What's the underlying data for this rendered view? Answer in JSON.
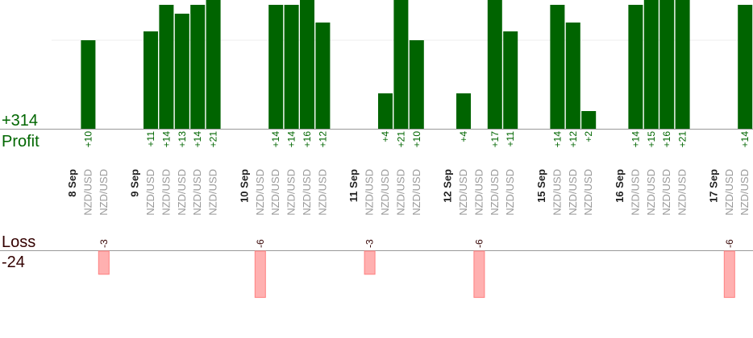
{
  "summary": {
    "profit_total": {
      "value": 314,
      "label": "+314"
    },
    "profit_label": "Profit",
    "loss_label": "Loss",
    "loss_total": -24
  },
  "days": [
    {
      "date": "8 Sep",
      "trades": [
        {
          "symbol": "NZD/USD",
          "result": 10,
          "label": "+10"
        },
        {
          "symbol": "NZD/USD",
          "result": -3
        }
      ]
    },
    {
      "date": "9 Sep",
      "trades": [
        {
          "symbol": "NZD/USD",
          "result": 11,
          "label": "+11"
        },
        {
          "symbol": "NZD/USD",
          "result": 14,
          "label": "+14"
        },
        {
          "symbol": "NZD/USD",
          "result": 13,
          "label": "+13"
        },
        {
          "symbol": "NZD/USD",
          "result": 14,
          "label": "+14"
        },
        {
          "symbol": "NZD/USD",
          "result": 21,
          "label": "+21"
        }
      ]
    },
    {
      "date": "10 Sep",
      "trades": [
        {
          "symbol": "NZD/USD",
          "result": -6
        },
        {
          "symbol": "NZD/USD",
          "result": 14,
          "label": "+14"
        },
        {
          "symbol": "NZD/USD",
          "result": 14,
          "label": "+14"
        },
        {
          "symbol": "NZD/USD",
          "result": 16,
          "label": "+16"
        },
        {
          "symbol": "NZD/USD",
          "result": 12,
          "label": "+12"
        }
      ]
    },
    {
      "date": "11 Sep",
      "trades": [
        {
          "symbol": "NZD/USD",
          "result": -3
        },
        {
          "symbol": "NZD/USD",
          "result": 4,
          "label": "+4"
        },
        {
          "symbol": "NZD/USD",
          "result": 21,
          "label": "+21"
        },
        {
          "symbol": "NZD/USD",
          "result": 10,
          "label": "+10"
        }
      ]
    },
    {
      "date": "12 Sep",
      "trades": [
        {
          "symbol": "NZD/USD",
          "result": 4,
          "label": "+4"
        },
        {
          "symbol": "NZD/USD",
          "result": -6
        },
        {
          "symbol": "NZD/USD",
          "result": 17,
          "label": "+17"
        },
        {
          "symbol": "NZD/USD",
          "result": 11,
          "label": "+11"
        }
      ]
    },
    {
      "date": "15 Sep",
      "trades": [
        {
          "symbol": "NZD/USD",
          "result": 14,
          "label": "+14"
        },
        {
          "symbol": "NZD/USD",
          "result": 12,
          "label": "+12"
        },
        {
          "symbol": "NZD/USD",
          "result": 2,
          "label": "+2"
        }
      ]
    },
    {
      "date": "16 Sep",
      "trades": [
        {
          "symbol": "NZD/USD",
          "result": 14,
          "label": "+14"
        },
        {
          "symbol": "NZD/USD",
          "result": 15,
          "label": "+15"
        },
        {
          "symbol": "NZD/USD",
          "result": 16,
          "label": "+16"
        },
        {
          "symbol": "NZD/USD",
          "result": 21,
          "label": "+21"
        }
      ]
    },
    {
      "date": "17 Sep",
      "trades": [
        {
          "symbol": "NZD/USD",
          "result": -6
        },
        {
          "symbol": "NZD/USD",
          "result": 14,
          "label": "+14"
        }
      ]
    }
  ]
}
